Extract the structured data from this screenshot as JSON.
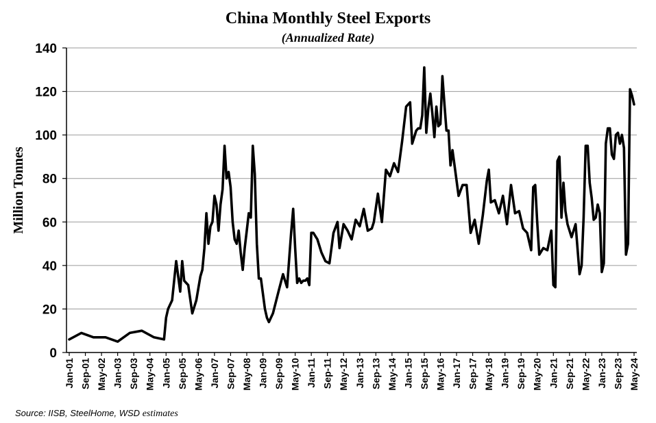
{
  "chart_data": {
    "type": "line",
    "title": "China Monthly Steel Exports",
    "subtitle": "(Annualized Rate)",
    "xlabel": "",
    "ylabel": "Million Tonnes",
    "ylim": [
      0,
      140
    ],
    "yticks": [
      0,
      20,
      40,
      60,
      80,
      100,
      120,
      140
    ],
    "grid": true,
    "legend": "none",
    "line_color": "#000000",
    "xtick_labels": [
      "Jan-01",
      "Sep-01",
      "May-02",
      "Jan-03",
      "Sep-03",
      "May-04",
      "Jan-05",
      "Sep-05",
      "May-06",
      "Jan-07",
      "Sep-07",
      "May-08",
      "Jan-09",
      "Sep-09",
      "May-10",
      "Jan-11",
      "Sep-11",
      "May-12",
      "Jan-13",
      "Sep-13",
      "May-14",
      "Jan-15",
      "Sep-15",
      "May-16",
      "Jan-17",
      "Sep-17",
      "May-18",
      "Jan-19",
      "Sep-19",
      "May-20",
      "Jan-21",
      "Sep-21",
      "May-22",
      "Jan-23",
      "Sep-23",
      "May-24"
    ],
    "series": [
      {
        "x": [
          "2001-01",
          "2001-07",
          "2002-01",
          "2002-07",
          "2003-01",
          "2003-07",
          "2004-01",
          "2004-07",
          "2004-12",
          "2005-01",
          "2005-02",
          "2005-03",
          "2005-04",
          "2005-06",
          "2005-08",
          "2005-09",
          "2005-10",
          "2005-12",
          "2006-02",
          "2006-04",
          "2006-06",
          "2006-07",
          "2006-08",
          "2006-09",
          "2006-10",
          "2006-11",
          "2006-12",
          "2007-01",
          "2007-02",
          "2007-03",
          "2007-04",
          "2007-05",
          "2007-06",
          "2007-07",
          "2007-08",
          "2007-09",
          "2007-10",
          "2007-11",
          "2007-12",
          "2008-01",
          "2008-02",
          "2008-03",
          "2008-04",
          "2008-05",
          "2008-06",
          "2008-07",
          "2008-08",
          "2008-09",
          "2008-10",
          "2008-11",
          "2008-12",
          "2009-02",
          "2009-03",
          "2009-04",
          "2009-06",
          "2009-09",
          "2009-11",
          "2010-01",
          "2010-03",
          "2010-04",
          "2010-05",
          "2010-06",
          "2010-07",
          "2010-08",
          "2010-09",
          "2010-10",
          "2010-11",
          "2010-12",
          "2011-01",
          "2011-02",
          "2011-04",
          "2011-06",
          "2011-08",
          "2011-10",
          "2011-12",
          "2012-02",
          "2012-03",
          "2012-05",
          "2012-07",
          "2012-09",
          "2012-11",
          "2013-01",
          "2013-03",
          "2013-05",
          "2013-07",
          "2013-08",
          "2013-10",
          "2013-12",
          "2014-02",
          "2014-04",
          "2014-06",
          "2014-08",
          "2014-10",
          "2014-12",
          "2015-01",
          "2015-02",
          "2015-03",
          "2015-05",
          "2015-06",
          "2015-07",
          "2015-08",
          "2015-09",
          "2015-10",
          "2015-11",
          "2015-12",
          "2016-01",
          "2016-02",
          "2016-03",
          "2016-04",
          "2016-05",
          "2016-06",
          "2016-07",
          "2016-08",
          "2016-09",
          "2016-10",
          "2016-11",
          "2016-12",
          "2017-02",
          "2017-04",
          "2017-06",
          "2017-08",
          "2017-10",
          "2017-12",
          "2018-02",
          "2018-04",
          "2018-05",
          "2018-06",
          "2018-08",
          "2018-10",
          "2018-12",
          "2019-02",
          "2019-04",
          "2019-06",
          "2019-08",
          "2019-10",
          "2019-12",
          "2020-02",
          "2020-03",
          "2020-04",
          "2020-05",
          "2020-06",
          "2020-08",
          "2020-10",
          "2020-12",
          "2021-01",
          "2021-02",
          "2021-03",
          "2021-04",
          "2021-05",
          "2021-06",
          "2021-07",
          "2021-08",
          "2021-10",
          "2021-12",
          "2022-02",
          "2022-03",
          "2022-04",
          "2022-05",
          "2022-06",
          "2022-07",
          "2022-08",
          "2022-09",
          "2022-10",
          "2022-11",
          "2022-12",
          "2023-01",
          "2023-02",
          "2023-03",
          "2023-04",
          "2023-05",
          "2023-06",
          "2023-07",
          "2023-08",
          "2023-09",
          "2023-10",
          "2023-11",
          "2023-12",
          "2024-01",
          "2024-02",
          "2024-03",
          "2024-04",
          "2024-05"
        ],
        "y": [
          6,
          9,
          7,
          7,
          5,
          9,
          10,
          7,
          6,
          16,
          20,
          22,
          24,
          42,
          28,
          42,
          33,
          31,
          18,
          24,
          35,
          38,
          48,
          64,
          50,
          58,
          60,
          72,
          68,
          56,
          68,
          75,
          95,
          80,
          83,
          76,
          60,
          52,
          50,
          56,
          46,
          38,
          48,
          56,
          64,
          62,
          95,
          82,
          50,
          34,
          34,
          20,
          16,
          14,
          18,
          29,
          36,
          30,
          55,
          66,
          48,
          32,
          34,
          32,
          33,
          33,
          34,
          31,
          55,
          55,
          52,
          46,
          42,
          41,
          55,
          60,
          48,
          59,
          56,
          52,
          61,
          58,
          66,
          56,
          57,
          60,
          73,
          60,
          84,
          81,
          87,
          83,
          97,
          113,
          114,
          115,
          96,
          102,
          103,
          103,
          109,
          131,
          101,
          112,
          119,
          110,
          99,
          113,
          104,
          105,
          127,
          114,
          102,
          102,
          86,
          93,
          86,
          72,
          77,
          77,
          55,
          61,
          50,
          63,
          79,
          84,
          69,
          70,
          64,
          72,
          59,
          77,
          64,
          65,
          57,
          55,
          47,
          76,
          77,
          60,
          45,
          48,
          47,
          56,
          31,
          30,
          88,
          90,
          62,
          78,
          65,
          59,
          53,
          59,
          36,
          40,
          62,
          95,
          95,
          78,
          71,
          61,
          62,
          68,
          64,
          37,
          41,
          96,
          103,
          103,
          91,
          89,
          100,
          101,
          96,
          100,
          94,
          45,
          50,
          121,
          118,
          114
        ]
      }
    ]
  },
  "source": {
    "prefix": "Source:  IISB, SteelHome, WSD ",
    "suffix": "estimates"
  }
}
